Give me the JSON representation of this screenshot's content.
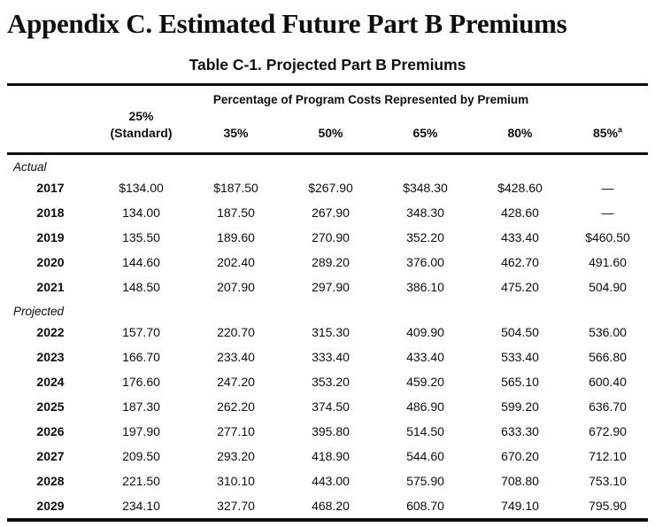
{
  "page": {
    "title": "Appendix C. Estimated Future Part B Premiums",
    "table_title": "Table C-1. Projected Part B Premiums"
  },
  "table": {
    "group_header": "Percentage of Program Costs Represented by Premium",
    "columns": [
      {
        "key": "25-standard",
        "label": "25%\n(Standard)"
      },
      {
        "key": "35",
        "label": "35%"
      },
      {
        "key": "50",
        "label": "50%"
      },
      {
        "key": "65",
        "label": "65%"
      },
      {
        "key": "80",
        "label": "80%"
      },
      {
        "key": "85",
        "label": "85%",
        "sup": "a"
      }
    ],
    "sections": [
      {
        "label": "Actual",
        "rows": [
          {
            "year": "2017",
            "values": [
              "$134.00",
              "$187.50",
              "$267.90",
              "$348.30",
              "$428.60",
              "—"
            ]
          },
          {
            "year": "2018",
            "values": [
              "134.00",
              "187.50",
              "267.90",
              "348.30",
              "428.60",
              "—"
            ]
          },
          {
            "year": "2019",
            "values": [
              "135.50",
              "189.60",
              "270.90",
              "352.20",
              "433.40",
              "$460.50"
            ]
          },
          {
            "year": "2020",
            "values": [
              "144.60",
              "202.40",
              "289.20",
              "376.00",
              "462.70",
              "491.60"
            ]
          },
          {
            "year": "2021",
            "values": [
              "148.50",
              "207.90",
              "297.90",
              "386.10",
              "475.20",
              "504.90"
            ]
          }
        ]
      },
      {
        "label": "Projected",
        "rows": [
          {
            "year": "2022",
            "values": [
              "157.70",
              "220.70",
              "315.30",
              "409.90",
              "504.50",
              "536.00"
            ]
          },
          {
            "year": "2023",
            "values": [
              "166.70",
              "233.40",
              "333.40",
              "433.40",
              "533.40",
              "566.80"
            ]
          },
          {
            "year": "2024",
            "values": [
              "176.60",
              "247.20",
              "353.20",
              "459.20",
              "565.10",
              "600.40"
            ]
          },
          {
            "year": "2025",
            "values": [
              "187.30",
              "262.20",
              "374.50",
              "486.90",
              "599.20",
              "636.70"
            ]
          },
          {
            "year": "2026",
            "values": [
              "197.90",
              "277.10",
              "395.80",
              "514.50",
              "633.30",
              "672.90"
            ]
          },
          {
            "year": "2027",
            "values": [
              "209.50",
              "293.20",
              "418.90",
              "544.60",
              "670.20",
              "712.10"
            ]
          },
          {
            "year": "2028",
            "values": [
              "221.50",
              "310.10",
              "443.00",
              "575.90",
              "708.80",
              "753.10"
            ]
          },
          {
            "year": "2029",
            "values": [
              "234.10",
              "327.70",
              "468.20",
              "608.70",
              "749.10",
              "795.90"
            ]
          }
        ]
      }
    ]
  }
}
